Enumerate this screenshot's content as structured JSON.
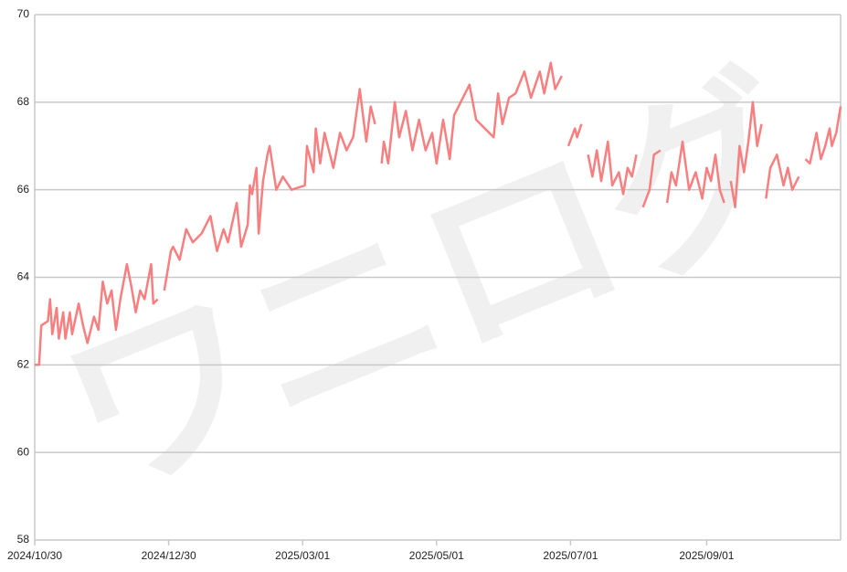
{
  "chart_data": {
    "type": "line",
    "watermark": "ワニログ",
    "color": "#f77f7f",
    "xlim": [
      "2024/10/30",
      "2025/11/01"
    ],
    "xticks": [
      "2024/10/30",
      "2024/12/30",
      "2025/03/01",
      "2025/05/01",
      "2025/07/01",
      "2025/09/01"
    ],
    "ylim": [
      58,
      70
    ],
    "yticks": [
      58,
      60,
      62,
      64,
      66,
      68,
      70
    ],
    "grid": true,
    "x": [
      "2024/10/30",
      "2024/11/01",
      "2024/11/02",
      "2024/11/05",
      "2024/11/06",
      "2024/11/07",
      "2024/11/09",
      "2024/11/10",
      "2024/11/12",
      "2024/11/13",
      "2024/11/15",
      "2024/11/16",
      "2024/11/19",
      "2024/11/21",
      "2024/11/23",
      "2024/11/26",
      "2024/11/28",
      "2024/11/30",
      "2024/12/02",
      "2024/12/04",
      "2024/12/06",
      "2024/12/08",
      "2024/12/11",
      "2024/12/13",
      "2024/12/15",
      "2024/12/17",
      "2024/12/19",
      "2024/12/22",
      "2024/12/23",
      "2024/12/25",
      "2024/12/27",
      "2024/12/28",
      "2024/12/31",
      "2025/01/01",
      "2025/01/04",
      "2025/01/07",
      "2025/01/10",
      "2025/01/14",
      "2025/01/18",
      "2025/01/21",
      "2025/01/24",
      "2025/01/26",
      "2025/01/30",
      "2025/02/01",
      "2025/02/04",
      "2025/02/05",
      "2025/02/06",
      "2025/02/08",
      "2025/02/09",
      "2025/02/11",
      "2025/02/13",
      "2025/02/14",
      "2025/02/17",
      "2025/02/20",
      "2025/02/24",
      "2025/03/02",
      "2025/03/03",
      "2025/03/06",
      "2025/03/07",
      "2025/03/09",
      "2025/03/11",
      "2025/03/15",
      "2025/03/18",
      "2025/03/21",
      "2025/03/24",
      "2025/03/27",
      "2025/03/30",
      "2025/04/01",
      "2025/04/03",
      "2025/04/04",
      "2025/04/06",
      "2025/04/07",
      "2025/04/09",
      "2025/04/12",
      "2025/04/14",
      "2025/04/17",
      "2025/04/20",
      "2025/04/23",
      "2025/04/26",
      "2025/04/29",
      "2025/05/01",
      "2025/05/04",
      "2025/05/07",
      "2025/05/09",
      "2025/05/12",
      "2025/05/16",
      "2025/05/19",
      "2025/05/23",
      "2025/05/27",
      "2025/05/29",
      "2025/05/31",
      "2025/06/03",
      "2025/06/06",
      "2025/06/10",
      "2025/06/13",
      "2025/06/17",
      "2025/06/19",
      "2025/06/22",
      "2025/06/24",
      "2025/06/27",
      "2025/06/29",
      "2025/06/30",
      "2025/07/03",
      "2025/07/04",
      "2025/07/06",
      "2025/07/07",
      "2025/07/09",
      "2025/07/11",
      "2025/07/13",
      "2025/07/15",
      "2025/07/18",
      "2025/07/20",
      "2025/07/23",
      "2025/07/25",
      "2025/07/27",
      "2025/07/29",
      "2025/07/31",
      "2025/08/02",
      "2025/08/03",
      "2025/08/06",
      "2025/08/08",
      "2025/08/11",
      "2025/08/12",
      "2025/08/14",
      "2025/08/16",
      "2025/08/18",
      "2025/08/21",
      "2025/08/24",
      "2025/08/27",
      "2025/08/30",
      "2025/09/01",
      "2025/09/03",
      "2025/09/05",
      "2025/09/07",
      "2025/09/09",
      "2025/09/11",
      "2025/09/12",
      "2025/09/14",
      "2025/09/16",
      "2025/09/18",
      "2025/09/20",
      "2025/09/22",
      "2025/09/24",
      "2025/09/26",
      "2025/09/27",
      "2025/09/28",
      "2025/09/30",
      "2025/10/03",
      "2025/10/06",
      "2025/10/08",
      "2025/10/10",
      "2025/10/13",
      "2025/10/15",
      "2025/10/16",
      "2025/10/18",
      "2025/10/21",
      "2025/10/23",
      "2025/10/25",
      "2025/10/27",
      "2025/10/28",
      "2025/10/30",
      "2025/11/01"
    ],
    "values": [
      62.0,
      62.0,
      62.9,
      63.0,
      63.5,
      62.7,
      63.3,
      62.6,
      63.2,
      62.6,
      63.2,
      62.7,
      63.4,
      62.9,
      62.5,
      63.1,
      62.8,
      63.9,
      63.4,
      63.7,
      62.8,
      63.5,
      64.3,
      63.8,
      63.2,
      63.7,
      63.5,
      64.3,
      63.4,
      63.5,
      null,
      63.7,
      64.6,
      64.7,
      64.4,
      65.1,
      64.8,
      65.0,
      65.4,
      64.6,
      65.1,
      64.8,
      65.7,
      64.7,
      65.2,
      66.1,
      65.9,
      66.5,
      65.0,
      66.2,
      66.8,
      67.0,
      66.0,
      66.3,
      66.0,
      66.1,
      67.0,
      66.4,
      67.4,
      66.6,
      67.3,
      66.5,
      67.3,
      66.9,
      67.2,
      68.3,
      67.1,
      67.9,
      67.5,
      null,
      66.6,
      67.1,
      66.6,
      68.0,
      67.2,
      67.8,
      66.9,
      67.6,
      66.9,
      67.3,
      66.6,
      67.6,
      66.7,
      67.7,
      68.0,
      68.4,
      67.6,
      67.4,
      67.2,
      68.2,
      67.5,
      68.1,
      68.2,
      68.7,
      68.1,
      68.7,
      68.2,
      68.9,
      68.3,
      68.6,
      null,
      67.0,
      67.4,
      67.2,
      67.5,
      null,
      66.8,
      66.3,
      66.9,
      66.2,
      67.1,
      66.1,
      66.4,
      65.9,
      66.5,
      66.3,
      66.8,
      null,
      65.6,
      66.0,
      66.8,
      66.9,
      null,
      65.7,
      66.4,
      66.1,
      67.1,
      66.0,
      66.4,
      65.8,
      66.5,
      66.2,
      66.8,
      66.0,
      65.7,
      null,
      66.2,
      65.6,
      67.0,
      66.4,
      67.1,
      68.0,
      67.0,
      67.5,
      null,
      65.8,
      66.5,
      66.8,
      66.1,
      66.5,
      66.0,
      66.3,
      null,
      66.7,
      66.6,
      67.3,
      66.7,
      67.0,
      67.4,
      67.0,
      67.3,
      67.9
    ]
  }
}
